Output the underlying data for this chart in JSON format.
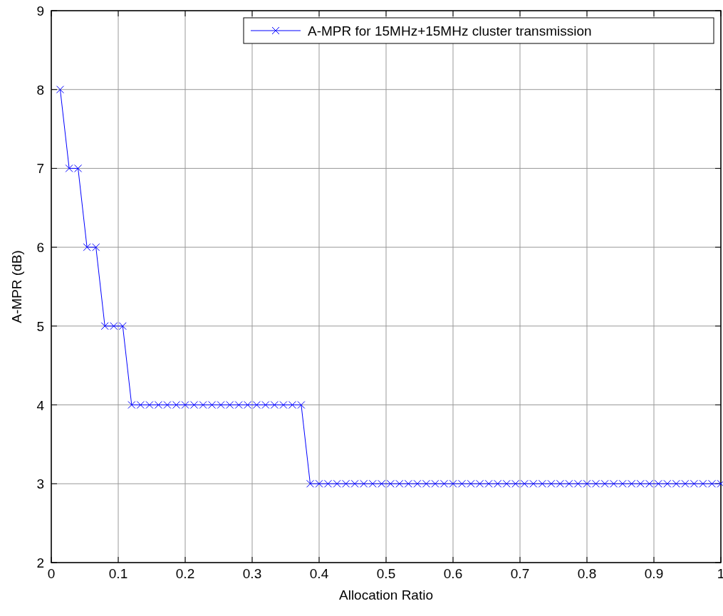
{
  "chart_data": {
    "type": "line",
    "xlabel": "Allocation Ratio",
    "ylabel": "A-MPR (dB)",
    "x": [
      0.0133,
      0.0267,
      0.04,
      0.0533,
      0.0667,
      0.08,
      0.0933,
      0.1067,
      0.12,
      0.1333,
      0.1467,
      0.16,
      0.1733,
      0.1867,
      0.2,
      0.2133,
      0.2267,
      0.24,
      0.2533,
      0.2667,
      0.28,
      0.2933,
      0.3067,
      0.32,
      0.3333,
      0.3467,
      0.36,
      0.3733,
      0.3867,
      0.4,
      0.4133,
      0.4267,
      0.44,
      0.4533,
      0.4667,
      0.48,
      0.4933,
      0.5067,
      0.52,
      0.5333,
      0.5467,
      0.56,
      0.5733,
      0.5867,
      0.6,
      0.6133,
      0.6267,
      0.64,
      0.6533,
      0.6667,
      0.68,
      0.6933,
      0.7067,
      0.72,
      0.7333,
      0.7467,
      0.76,
      0.7733,
      0.7867,
      0.8,
      0.8133,
      0.8267,
      0.84,
      0.8533,
      0.8667,
      0.88,
      0.8933,
      0.9067,
      0.92,
      0.9333,
      0.9467,
      0.96,
      0.9733,
      0.9867,
      1
    ],
    "series": [
      {
        "name": "A-MPR for 15MHz+15MHz cluster transmission",
        "color": "#0000ff",
        "values": [
          8,
          7,
          7,
          6,
          6,
          5,
          5,
          5,
          4,
          4,
          4,
          4,
          4,
          4,
          4,
          4,
          4,
          4,
          4,
          4,
          4,
          4,
          4,
          4,
          4,
          4,
          4,
          4,
          3,
          3,
          3,
          3,
          3,
          3,
          3,
          3,
          3,
          3,
          3,
          3,
          3,
          3,
          3,
          3,
          3,
          3,
          3,
          3,
          3,
          3,
          3,
          3,
          3,
          3,
          3,
          3,
          3,
          3,
          3,
          3,
          3,
          3,
          3,
          3,
          3,
          3,
          3,
          3,
          3,
          3,
          3,
          3,
          3,
          3,
          3
        ]
      }
    ],
    "xlim": [
      0,
      1
    ],
    "xticks": [
      0,
      0.1,
      0.2,
      0.3,
      0.4,
      0.5,
      0.6,
      0.7,
      0.8,
      0.9,
      1
    ],
    "ylim": [
      2,
      9
    ],
    "yticks": [
      2,
      3,
      4,
      5,
      6,
      7,
      8,
      9
    ],
    "grid": true,
    "legend": "top right",
    "marker": "cross",
    "line_style": "solid"
  }
}
